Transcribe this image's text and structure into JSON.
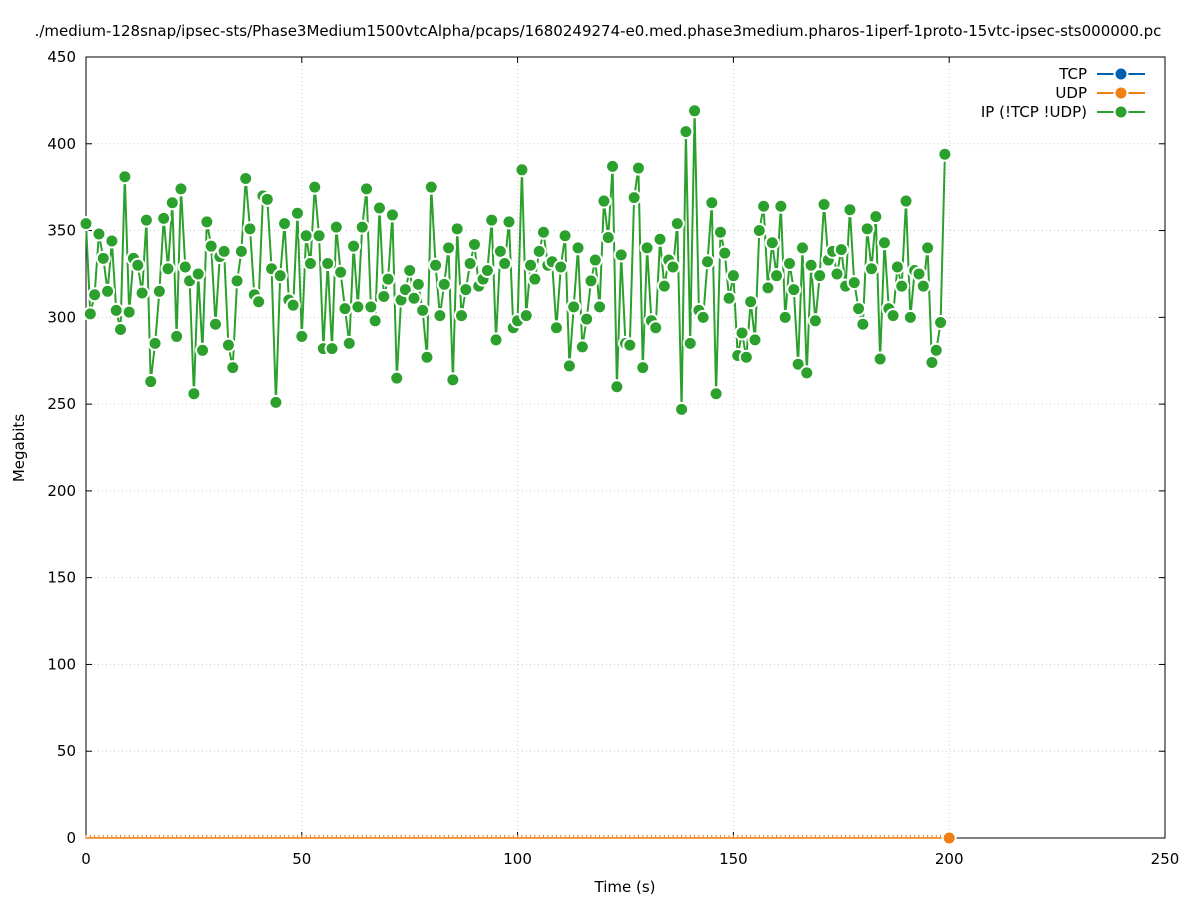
{
  "chart_data": {
    "type": "line",
    "title": "./medium-128snap/ipsec-sts/Phase3Medium1500vtcAlpha/pcaps/1680249274-e0.med.phase3medium.pharos-1iperf-1proto-15vtc-ipsec-sts000000.pc",
    "xlabel": "Time (s)",
    "ylabel": "Megabits",
    "xlim": [
      0,
      250
    ],
    "ylim": [
      0,
      450
    ],
    "x_ticks": [
      0,
      50,
      100,
      150,
      200,
      250
    ],
    "y_ticks": [
      0,
      50,
      100,
      150,
      200,
      250,
      300,
      350,
      400,
      450
    ],
    "grid": true,
    "legend_position": "top-right",
    "series": [
      {
        "name": "TCP",
        "color": "#0060ad",
        "x": [],
        "y": []
      },
      {
        "name": "UDP",
        "color": "#f07f14",
        "x": [
          0,
          200
        ],
        "y": [
          0,
          0
        ]
      },
      {
        "name": "IP (!TCP  !UDP)",
        "color": "#2ca02c",
        "x": [
          0,
          1,
          2,
          3,
          4,
          5,
          6,
          7,
          8,
          9,
          10,
          11,
          12,
          13,
          14,
          15,
          16,
          17,
          18,
          19,
          20,
          21,
          22,
          23,
          24,
          25,
          26,
          27,
          28,
          29,
          30,
          31,
          32,
          33,
          34,
          35,
          36,
          37,
          38,
          39,
          40,
          41,
          42,
          43,
          44,
          45,
          46,
          47,
          48,
          49,
          50,
          51,
          52,
          53,
          54,
          55,
          56,
          57,
          58,
          59,
          60,
          61,
          62,
          63,
          64,
          65,
          66,
          67,
          68,
          69,
          70,
          71,
          72,
          73,
          74,
          75,
          76,
          77,
          78,
          79,
          80,
          81,
          82,
          83,
          84,
          85,
          86,
          87,
          88,
          89,
          90,
          91,
          92,
          93,
          94,
          95,
          96,
          97,
          98,
          99,
          100,
          101,
          102,
          103,
          104,
          105,
          106,
          107,
          108,
          109,
          110,
          111,
          112,
          113,
          114,
          115,
          116,
          117,
          118,
          119,
          120,
          121,
          122,
          123,
          124,
          125,
          126,
          127,
          128,
          129,
          130,
          131,
          132,
          133,
          134,
          135,
          136,
          137,
          138,
          139,
          140,
          141,
          142,
          143,
          144,
          145,
          146,
          147,
          148,
          149,
          150,
          151,
          152,
          153,
          154,
          155,
          156,
          157,
          158,
          159,
          160,
          161,
          162,
          163,
          164,
          165,
          166,
          167,
          168,
          169,
          170,
          171,
          172,
          173,
          174,
          175,
          176,
          177,
          178,
          179,
          180,
          181,
          182,
          183,
          184,
          185,
          186,
          187,
          188,
          189,
          190,
          191,
          192,
          193,
          194,
          195,
          196,
          197,
          198,
          199,
          200
        ],
        "y": [
          354,
          302,
          313,
          348,
          334,
          315,
          344,
          304,
          293,
          381,
          303,
          334,
          330,
          314,
          356,
          263,
          285,
          315,
          357,
          328,
          366,
          289,
          374,
          329,
          321,
          256,
          325,
          281,
          355,
          341,
          296,
          335,
          338,
          284,
          271,
          321,
          338,
          380,
          351,
          313,
          309,
          370,
          368,
          328,
          251,
          324,
          354,
          310,
          307,
          360,
          289,
          347,
          331,
          375,
          347,
          282,
          331,
          282,
          352,
          326,
          305,
          285,
          341,
          306,
          352,
          374,
          306,
          298,
          363,
          312,
          322,
          359,
          265,
          310,
          316,
          327,
          311,
          319,
          304,
          277,
          375,
          330,
          301,
          319,
          340,
          264,
          351,
          301,
          316,
          331,
          342,
          318,
          322,
          327,
          356,
          287,
          338,
          331,
          355,
          294,
          298,
          385,
          301,
          330,
          322,
          338,
          349,
          330,
          332,
          294,
          329,
          347,
          272,
          306,
          340,
          283,
          299,
          321,
          333,
          306,
          367,
          346,
          387,
          260,
          336,
          285,
          284,
          369,
          386,
          271,
          340,
          298,
          294,
          345,
          318,
          333,
          329,
          354,
          247,
          407,
          285,
          419,
          304,
          300,
          332,
          366,
          256,
          349,
          337,
          311,
          324,
          278,
          291,
          277,
          309,
          287,
          350,
          364,
          317,
          343,
          324,
          364,
          300,
          331,
          316,
          273,
          340,
          268,
          330,
          298,
          324,
          365,
          333,
          338,
          325,
          339,
          318,
          362,
          320,
          305,
          296,
          351,
          328,
          358,
          276,
          343,
          305,
          301,
          329,
          318,
          367,
          300,
          327,
          325,
          318,
          340,
          274,
          281,
          297,
          394,
          null
        ]
      }
    ]
  }
}
